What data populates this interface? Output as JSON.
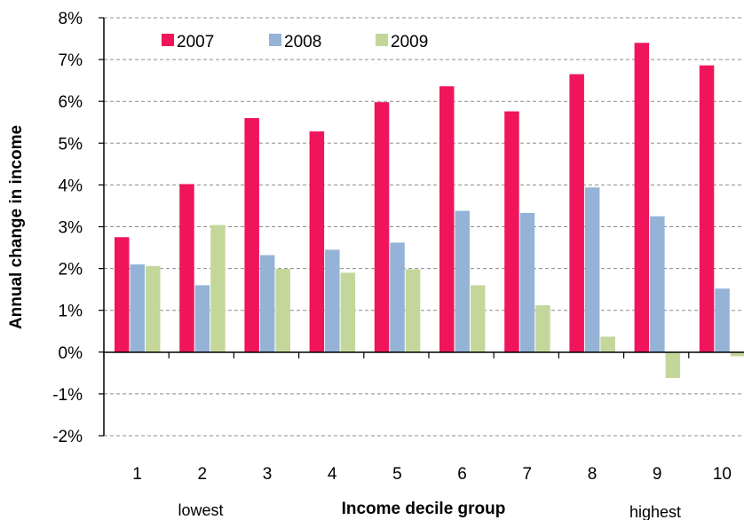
{
  "chart_data": {
    "type": "bar",
    "title": "",
    "xlabel": "Income decile group",
    "ylabel": "Annual change in income",
    "categories": [
      "1",
      "2",
      "3",
      "4",
      "5",
      "6",
      "7",
      "8",
      "9",
      "10"
    ],
    "series": [
      {
        "name": "2007",
        "color": "#f0145a",
        "values": [
          2.75,
          4.02,
          5.6,
          5.28,
          5.98,
          6.36,
          5.76,
          6.65,
          7.4,
          6.86
        ]
      },
      {
        "name": "2008",
        "color": "#95b3d7",
        "values": [
          2.1,
          1.6,
          2.32,
          2.45,
          2.62,
          3.38,
          3.33,
          3.94,
          3.25,
          1.52
        ]
      },
      {
        "name": "2009",
        "color": "#c4d79b",
        "values": [
          2.06,
          3.04,
          1.99,
          1.9,
          1.98,
          1.6,
          1.12,
          0.37,
          -0.62,
          -0.1
        ]
      }
    ],
    "ylim": [
      -2,
      8
    ],
    "yticks": [
      -2,
      -1,
      0,
      1,
      2,
      3,
      4,
      5,
      6,
      7,
      8
    ],
    "ytick_format": "percent",
    "grid": true,
    "legend": "top-left",
    "annotations": {
      "low_end": "lowest",
      "high_end": "highest"
    }
  }
}
